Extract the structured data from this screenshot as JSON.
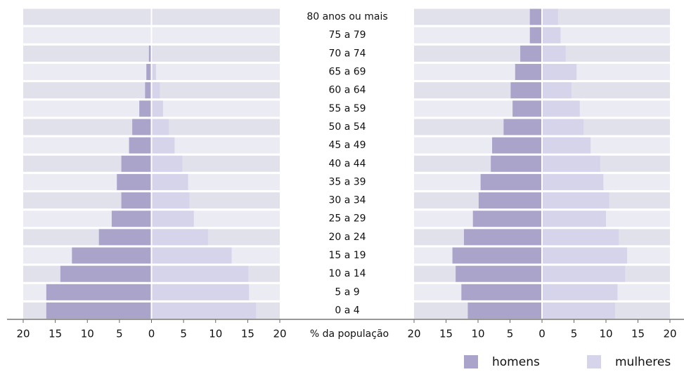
{
  "chart_data": {
    "type": "pyramid",
    "categories": [
      "80 anos ou mais",
      "75 a 79",
      "70 a 74",
      "65 a 69",
      "60 a 64",
      "55 a 59",
      "50 a 54",
      "45 a 49",
      "40 a 44",
      "35 a 39",
      "30 a 34",
      "25 a 29",
      "20 a 24",
      "15 a 19",
      "10 a 14",
      "5 a 9",
      "0 a 4"
    ],
    "x_label": "% da população",
    "xlim": [
      -20,
      20
    ],
    "xticks": [
      {
        "value": -20,
        "label": "20"
      },
      {
        "value": -15,
        "label": "15"
      },
      {
        "value": -10,
        "label": "10"
      },
      {
        "value": -5,
        "label": "5"
      },
      0,
      5,
      10,
      15,
      20
    ],
    "series": [
      {
        "name": "homens",
        "color": "#aaa4ca"
      },
      {
        "name": "mulheres",
        "color": "#d6d4ea"
      }
    ],
    "panels": [
      {
        "values": [
          [
            0,
            0,
            -0.4,
            -0.8,
            -1.0,
            -1.9,
            -3.0,
            -3.5,
            -4.7,
            -5.4,
            -4.7,
            -6.2,
            -8.2,
            -12.4,
            -14.2,
            -16.4,
            -16.4
          ],
          [
            0,
            0,
            0.2,
            0.7,
            1.3,
            1.8,
            2.7,
            3.6,
            4.8,
            5.7,
            5.9,
            6.6,
            8.8,
            12.5,
            15.1,
            15.2,
            16.3
          ]
        ]
      },
      {
        "values": [
          [
            -1.9,
            -1.9,
            -3.4,
            -4.2,
            -4.9,
            -4.6,
            -6.0,
            -7.8,
            -8.0,
            -9.6,
            -9.9,
            -10.8,
            -12.2,
            -14.0,
            -13.5,
            -12.6,
            -11.6
          ],
          [
            2.5,
            2.9,
            3.7,
            5.4,
            4.6,
            5.9,
            6.5,
            7.6,
            9.1,
            9.6,
            10.5,
            10.0,
            12.0,
            13.3,
            13.0,
            11.8,
            11.4
          ]
        ]
      }
    ]
  }
}
